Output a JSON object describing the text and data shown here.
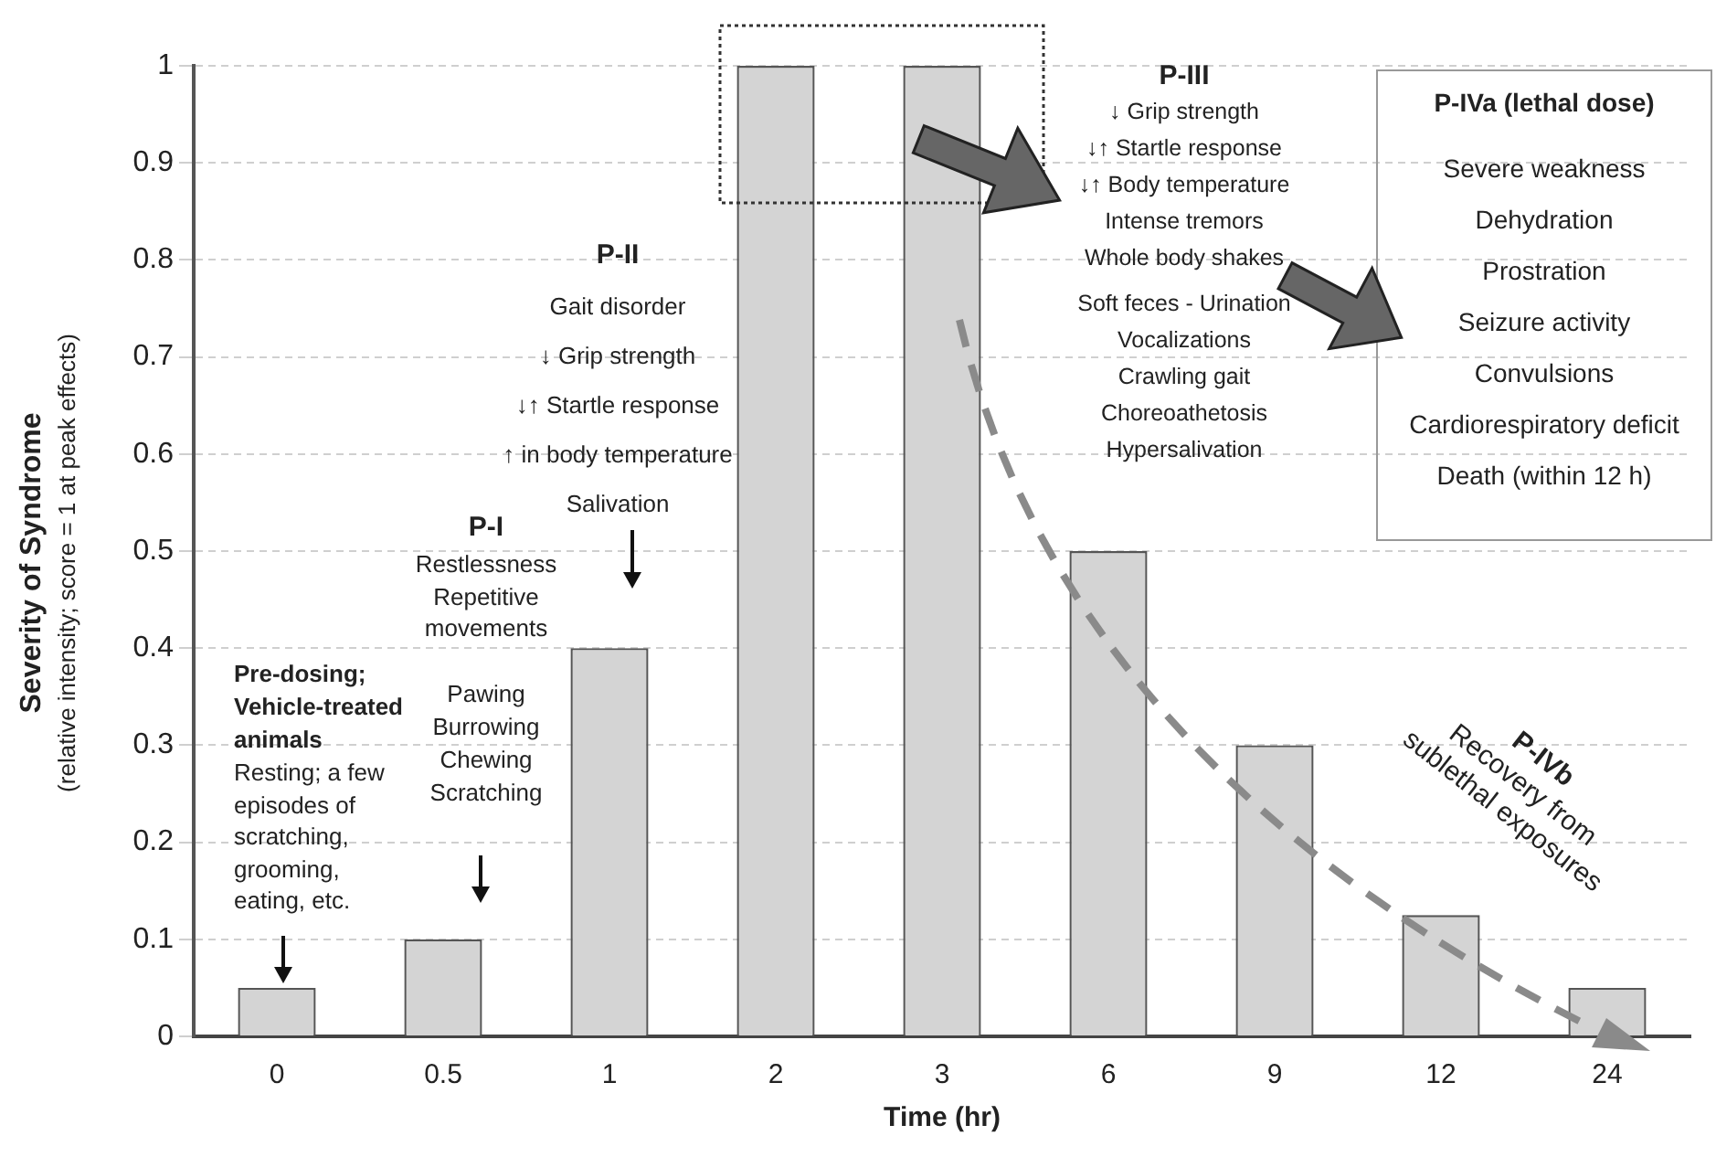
{
  "chart_data": {
    "type": "bar",
    "xlabel": "Time (hr)",
    "ylabel": "Severity of Syndrome\n(relative intensity; score = 1 at peak effects)",
    "categories": [
      "0",
      "0.5",
      "1",
      "2",
      "3",
      "6",
      "9",
      "12",
      "24"
    ],
    "values": [
      0.05,
      0.1,
      0.4,
      1,
      1,
      0.5,
      0.3,
      0.125,
      0.05
    ],
    "color": "#d4d4d4",
    "ylim": [
      0,
      1
    ],
    "yticks": [
      0,
      0.1,
      0.2,
      0.3,
      0.4,
      0.5,
      0.6,
      0.7,
      0.8,
      0.9,
      1
    ],
    "grid": "y",
    "legend": false,
    "annotations": [
      "Pre-dosing;\nVehicle-treated\nanimals",
      "Resting; a few\nepisodes of\nscratching,\ngrooming,\neating, etc.",
      "P-I",
      "Restlessness\nRepetitive\nmovements",
      "Pawing\nBurrowing\nChewing\nScratching",
      "P-II",
      "Gait disorder\n↓ Grip strength\n↓↑ Startle  response\n↑ in body temperature\nSalivation",
      "P-III",
      "↓ Grip strength\n↓↑ Startle  response\n↓↑ Body temperature\nIntense tremors\nWhole body shakes",
      "Soft feces - Urination\nVocalizations\nCrawling gait\nChoreoathetosis\nHypersalivation",
      "P-IVa (lethal dose)",
      "Severe weakness\nDehydration\nProstration\nSeizure activity\nConvulsions\nCardiorespiratory deficit\nDeath (within 12 h)",
      "P-IVb",
      "Recovery from\nsublethal exposures"
    ]
  }
}
